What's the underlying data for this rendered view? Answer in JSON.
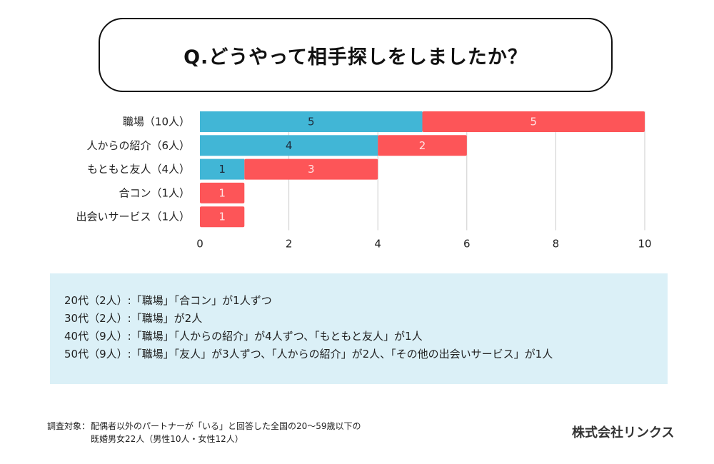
{
  "title": "Q.どうやって相手探しをしましたか？",
  "colors": {
    "blue": "#41b6d6",
    "red": "#fd5558",
    "grid": "#cccccc",
    "info_bg": "#dbf0f7"
  },
  "chart_data": {
    "type": "bar",
    "orientation": "horizontal",
    "stacked": true,
    "title": "Q.どうやって相手探しをしましたか？",
    "xlabel": "",
    "ylabel": "",
    "xlim": [
      0,
      10
    ],
    "xticks": [
      "0",
      "2",
      "4",
      "6",
      "8",
      "10"
    ],
    "grid": true,
    "categories": [
      "職場（10人）",
      "人からの紹介（6人）",
      "もともと友人（4人）",
      "合コン（1人）",
      "出会いサービス（1人）"
    ],
    "series": [
      {
        "name": "blue",
        "color": "#41b6d6",
        "values": [
          5,
          4,
          1,
          0,
          0
        ]
      },
      {
        "name": "red",
        "color": "#fd5558",
        "values": [
          5,
          2,
          3,
          1,
          1
        ]
      }
    ]
  },
  "info": {
    "lines": [
      "20代（2人）:「職場」「合コン」が1人ずつ",
      "30代（2人）:「職場」が2人",
      "40代（9人）:「職場」「人からの紹介」が4人ずつ、「もともと友人」が1人",
      "50代（9人）:「職場」「友人」が3人ずつ、「人からの紹介」が2人、「その他の出会いサービス」が1人"
    ]
  },
  "note": {
    "label": "調査対象：",
    "line1": "配偶者以外のパートナーが「いる」と回答した全国の20〜59歳以下の",
    "line2": "既婚男女22人（男性10人・女性12人）"
  },
  "company": "株式会社リンクス"
}
